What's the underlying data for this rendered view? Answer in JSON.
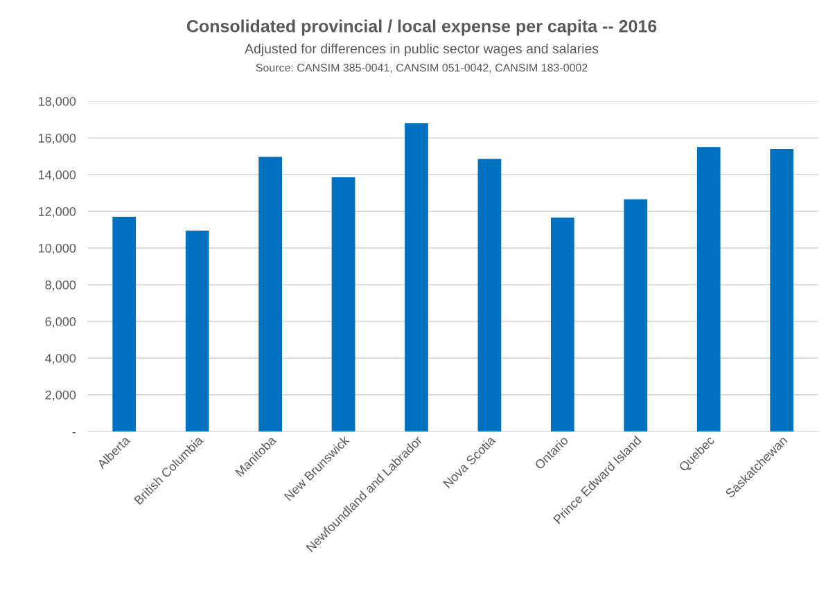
{
  "chart_data": {
    "type": "bar",
    "title": "Consolidated provincial / local expense per capita -- 2016",
    "subtitle": "Adjusted for differences in public sector wages and salaries",
    "annotations": [
      "Source: CANSIM 385-0041, CANSIM 051-0042, CANSIM 183-0002"
    ],
    "categories": [
      "Alberta",
      "British Columbia",
      "Manitoba",
      "New Brunswick",
      "Newfoundland and Labrador",
      "Nova Scotia",
      "Ontario",
      "Prince Edward Island",
      "Quebec",
      "Saskatchewan"
    ],
    "values": [
      11700,
      10950,
      14970,
      13850,
      16800,
      14850,
      11650,
      12650,
      15500,
      15400
    ],
    "color": "#0070c0",
    "ylim": [
      0,
      18000
    ],
    "yticks": [
      {
        "value": 0,
        "label": "-"
      },
      {
        "value": 2000,
        "label": "2,000"
      },
      {
        "value": 4000,
        "label": "4,000"
      },
      {
        "value": 6000,
        "label": "6,000"
      },
      {
        "value": 8000,
        "label": "8,000"
      },
      {
        "value": 10000,
        "label": "10,000"
      },
      {
        "value": 12000,
        "label": "12,000"
      },
      {
        "value": 14000,
        "label": "14,000"
      },
      {
        "value": 16000,
        "label": "16,000"
      },
      {
        "value": 18000,
        "label": "18,000"
      }
    ],
    "grid": "y",
    "legend": false
  }
}
